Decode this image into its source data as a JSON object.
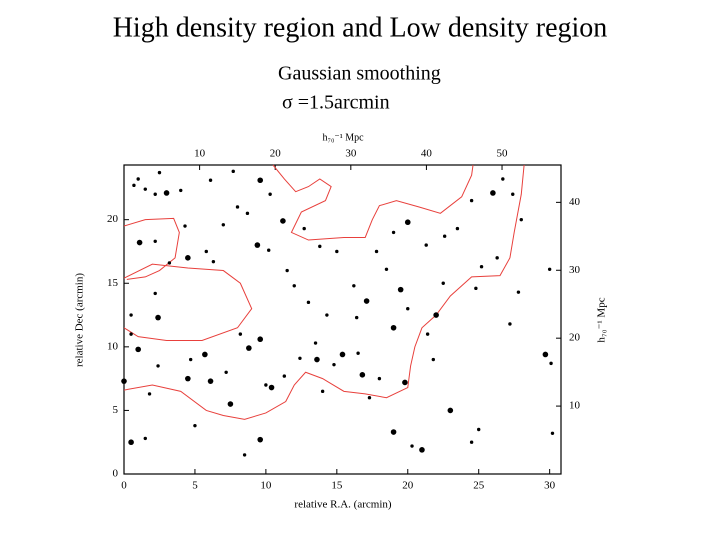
{
  "title": "High density region and Low density region",
  "subtitle": "Gaussian smoothing",
  "sigma_label": "σ =1.5arcmin",
  "chart_data": {
    "type": "scatter",
    "x_label": "relative R.A. (arcmin)",
    "y_label": "relative Dec (arcmin)",
    "x2_label": "h₇₀⁻¹ Mpc",
    "y2_label": "h₇₀⁻¹ Mpc",
    "xlim": [
      0,
      30.8
    ],
    "xticks": [
      0,
      5,
      10,
      15,
      20,
      25,
      30
    ],
    "ylim": [
      0,
      24.3
    ],
    "yticks": [
      0,
      5,
      10,
      15,
      20
    ],
    "x2lim": [
      0,
      57.8
    ],
    "x2ticks": [
      10,
      20,
      30,
      40,
      50
    ],
    "y2lim": [
      0,
      45.5
    ],
    "y2ticks": [
      10,
      20,
      30,
      40
    ],
    "color": "#000000",
    "contour_color": "#e8403c",
    "x": [
      0.7,
      1.5,
      2.2,
      3.0,
      1.0,
      2.5,
      4.0,
      6.1,
      8.0,
      9.6,
      10.3,
      11.2,
      8.7,
      9.4,
      7.0,
      6.3,
      4.5,
      5.8,
      2.2,
      1.1,
      4.3,
      10.2,
      11.5,
      12.0,
      13.0,
      14.3,
      16.4,
      17.1,
      16.2,
      18.5,
      19.5,
      20.0,
      19.0,
      17.8,
      19.0,
      20.0,
      21.3,
      22.6,
      23.5,
      24.5,
      26.0,
      26.7,
      27.4,
      28.0,
      25.2,
      26.3,
      24.8,
      27.8,
      30.0,
      29.7,
      30.1,
      22.0,
      21.4,
      21.8,
      19.8,
      18.0,
      17.3,
      14.8,
      13.6,
      12.4,
      11.3,
      10.4,
      10.0,
      8.8,
      8.2,
      9.6,
      7.2,
      6.1,
      5.7,
      4.7,
      4.5,
      2.4,
      1.0,
      0.5,
      0.5,
      2.4,
      2.2,
      0.0,
      1.8,
      7.5,
      9.6,
      8.5,
      5.0,
      1.5,
      0.5,
      21.0,
      19.0,
      20.3,
      23.0,
      24.5,
      25.0,
      30.2,
      13.5,
      15.4,
      16.5,
      14.0,
      16.8,
      22.5,
      12.7,
      13.8,
      15.0,
      7.7,
      3.2,
      27.2
    ],
    "y": [
      22.7,
      22.4,
      22.0,
      22.1,
      23.2,
      23.7,
      22.3,
      23.1,
      21.0,
      23.1,
      22.0,
      19.9,
      20.5,
      18.0,
      19.6,
      16.7,
      17.0,
      17.5,
      18.3,
      18.2,
      19.5,
      17.6,
      16.0,
      14.8,
      13.5,
      12.5,
      12.3,
      13.6,
      14.8,
      16.1,
      14.5,
      13.0,
      11.5,
      17.5,
      19.0,
      19.8,
      18.0,
      18.7,
      19.3,
      21.5,
      22.1,
      23.2,
      22.0,
      20.0,
      16.3,
      17.0,
      14.6,
      14.3,
      16.1,
      9.4,
      8.7,
      12.5,
      11.0,
      9.0,
      7.2,
      7.5,
      6.0,
      8.6,
      9.0,
      9.1,
      7.7,
      6.8,
      7.0,
      9.9,
      11.0,
      10.6,
      8.0,
      7.3,
      9.4,
      9.0,
      7.5,
      8.5,
      9.8,
      11.0,
      12.5,
      12.3,
      14.2,
      7.3,
      6.3,
      5.5,
      2.7,
      1.5,
      3.8,
      2.8,
      2.5,
      1.9,
      3.3,
      2.2,
      5.0,
      2.5,
      3.5,
      3.2,
      10.3,
      9.4,
      9.5,
      6.5,
      7.8,
      15.0,
      19.3,
      17.9,
      17.5,
      23.8,
      16.6,
      11.8
    ],
    "sizes": [
      1,
      1,
      1,
      2,
      1,
      1,
      1,
      1,
      1,
      2,
      1,
      2,
      1,
      2,
      1,
      1,
      2,
      1,
      1,
      2,
      1,
      1,
      1,
      1,
      1,
      1,
      1,
      2,
      1,
      1,
      2,
      1,
      2,
      1,
      1,
      2,
      1,
      1,
      1,
      1,
      2,
      1,
      1,
      1,
      1,
      1,
      1,
      1,
      1,
      2,
      1,
      2,
      1,
      1,
      2,
      1,
      1,
      1,
      2,
      1,
      1,
      2,
      1,
      2,
      1,
      2,
      1,
      2,
      2,
      1,
      2,
      1,
      2,
      1,
      1,
      2,
      1,
      2,
      1,
      2,
      2,
      1,
      1,
      1,
      2,
      2,
      2,
      1,
      2,
      1,
      1,
      1,
      1,
      2,
      1,
      1,
      2,
      1,
      1,
      1,
      1,
      1,
      1,
      1
    ],
    "contours": [
      {
        "x": [
          0,
          1.5,
          3.5,
          3.9,
          3.6,
          2.5,
          1.5,
          0.2
        ],
        "y": [
          19.5,
          20.0,
          20.1,
          19.0,
          17.0,
          16.0,
          15.5,
          15.3
        ]
      },
      {
        "x": [
          0,
          2,
          4.5,
          7,
          8.2,
          9.0,
          8.0,
          5.5,
          3,
          1,
          0
        ],
        "y": [
          15.4,
          16.5,
          16.2,
          16.0,
          15.0,
          13.0,
          11.5,
          10.5,
          10.5,
          10.8,
          11.5
        ]
      },
      {
        "x": [
          0,
          2,
          4,
          5.8,
          7,
          8.5,
          10,
          11.4,
          12,
          12.8,
          14,
          15.5,
          17,
          18.5,
          20,
          20.2,
          20.5,
          21.0,
          22.0,
          23,
          24.5,
          26.5,
          27.2,
          27.5,
          28,
          28.2
        ],
        "y": [
          6.6,
          7.0,
          6.5,
          5.0,
          4.6,
          4.3,
          4.8,
          5.7,
          7.0,
          8.0,
          7.5,
          6.5,
          6.3,
          6.0,
          6.8,
          8.5,
          10.0,
          11.5,
          12.5,
          14,
          15.5,
          15.6,
          17,
          19,
          22,
          24.3
        ]
      },
      {
        "x": [
          10.5,
          11.3,
          12.1,
          13,
          13.8,
          14.6,
          14.2,
          12.5,
          11.8,
          13.0,
          15.5,
          17.0,
          17.5,
          18.0,
          19.2,
          20.8,
          22.3,
          23.8,
          24.5,
          24.6
        ],
        "y": [
          24.3,
          23.2,
          22.2,
          22.6,
          23.2,
          22.6,
          21.5,
          20.6,
          19.0,
          18.4,
          18.6,
          18.6,
          20.0,
          21.1,
          21.5,
          21.0,
          20.5,
          21.8,
          23.5,
          24.3
        ]
      }
    ]
  }
}
